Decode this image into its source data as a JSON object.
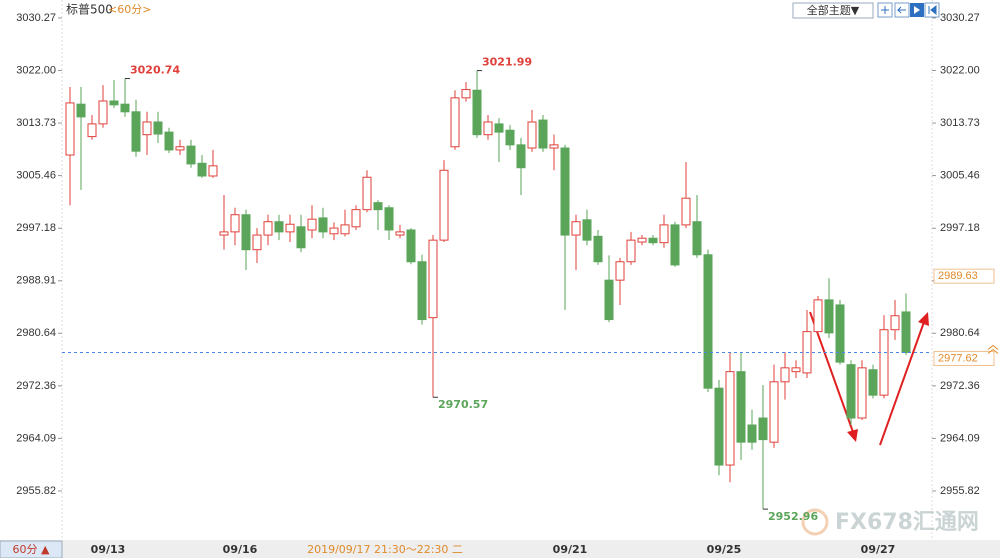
{
  "chart_data": {
    "type": "candlestick",
    "title": "标普500",
    "subtitle": "<60分>",
    "theme_button": "全部主题▼",
    "period_button": "60分 ▲",
    "watermark": "FX678汇通网",
    "crosshair_label": "2019/09/17 21:30～22:30 二",
    "crosshair_price": 2989.63,
    "categories": [
      null,
      null,
      null,
      "09/13",
      null,
      null,
      null,
      null,
      null,
      null,
      null,
      null,
      null,
      null,
      null,
      "09/16",
      null,
      null,
      null,
      null,
      null,
      null,
      null,
      null,
      null,
      null,
      null,
      null,
      null,
      null,
      null,
      null,
      null,
      null,
      null,
      null,
      null,
      null,
      null,
      null,
      null,
      null,
      null,
      null,
      null,
      "09/21",
      null,
      null,
      null,
      null,
      null,
      null,
      null,
      null,
      null,
      null,
      null,
      null,
      null,
      "09/25",
      null,
      null,
      null,
      null,
      null,
      null,
      null,
      null,
      null,
      null,
      null,
      null,
      null,
      "09/27",
      null,
      null,
      null
    ],
    "open": [
      3008.7,
      3016.7,
      3011.6,
      3013.6,
      3017.2,
      3016.7,
      3015.5,
      3011.9,
      3013.9,
      3012.3,
      3009.5,
      3010.1,
      3007.4,
      3005.4,
      2996.1,
      2996.6,
      2999.3,
      2993.8,
      2996.1,
      2998.2,
      2996.6,
      2997.4,
      2996.9,
      2998.8,
      2996.3,
      2996.3,
      2997.4,
      3000.1,
      3001.2,
      3000.4,
      2996.1,
      2996.9,
      2991.9,
      2983.1,
      2995.3,
      3010.0,
      3017.7,
      3018.9,
      3011.9,
      3013.6,
      3012.6,
      3010.3,
      3009.8,
      3014.2,
      3009.8,
      3009.8,
      2996.1,
      2998.5,
      2995.9,
      2989.0,
      2989.0,
      2991.9,
      2995.0,
      2995.6,
      2994.9,
      2997.7,
      2997.7,
      2998.2,
      2993.0,
      2972.0,
      2959.9,
      2974.6,
      2966.2,
      2967.3,
      2963.5,
      2973.0,
      2974.6,
      2974.4,
      2980.9,
      2985.9,
      2985.1,
      2975.7,
      2967.3,
      2974.9,
      2970.9,
      2981.2,
      2984.0
    ],
    "high": [
      3019.4,
      3019.4,
      3015.0,
      3019.7,
      3020.5,
      3020.74,
      3017.4,
      3015.5,
      3015.5,
      3013.0,
      3011.1,
      3011.1,
      3008.7,
      3009.5,
      3002.4,
      3000.4,
      3000.1,
      2997.2,
      2999.3,
      2999.3,
      2999.3,
      2999.3,
      3000.8,
      3000.4,
      2998.1,
      3000.1,
      3000.8,
      3006.3,
      3001.6,
      3000.8,
      2997.7,
      2997.2,
      2993.0,
      2996.1,
      3007.9,
      3018.9,
      3020.2,
      3021.99,
      3015.0,
      3014.5,
      3013.4,
      3011.4,
      3015.8,
      3015.0,
      3011.9,
      3010.3,
      2999.3,
      3000.1,
      2996.9,
      2992.9,
      2992.5,
      2996.6,
      2996.1,
      2996.1,
      2999.3,
      2998.2,
      3007.6,
      3002.4,
      2993.8,
      2973.3,
      2977.7,
      2977.7,
      2968.6,
      2972.5,
      2975.7,
      2977.7,
      2976.4,
      2984.3,
      2986.5,
      2989.3,
      2985.9,
      2976.4,
      2976.4,
      2975.7,
      2983.5,
      2985.9,
      2986.9
    ],
    "low": [
      3000.8,
      3003.2,
      3011.1,
      3013.0,
      3016.1,
      3014.7,
      3008.4,
      3008.7,
      3010.6,
      3009.0,
      3008.7,
      3006.7,
      3005.1,
      3005.1,
      2993.8,
      2994.5,
      2990.6,
      2991.7,
      2994.5,
      2995.3,
      2995.0,
      2993.4,
      2995.6,
      2995.6,
      2995.3,
      2995.9,
      2996.9,
      2999.7,
      2996.9,
      2995.3,
      2995.6,
      2991.5,
      2982.0,
      2970.57,
      2995.0,
      3009.5,
      3017.1,
      3011.4,
      3011.1,
      3007.6,
      3009.5,
      3002.4,
      3009.2,
      3009.2,
      3006.3,
      2984.3,
      2990.6,
      2994.5,
      2991.4,
      2982.4,
      2985.1,
      2991.4,
      2994.5,
      2994.5,
      2994.1,
      2991.1,
      2997.2,
      2992.5,
      2971.4,
      2958.3,
      2957.2,
      2960.7,
      2962.3,
      2952.96,
      2962.6,
      2970.2,
      2973.6,
      2973.6,
      2980.4,
      2979.9,
      2975.7,
      2966.2,
      2967.0,
      2970.4,
      2970.4,
      2979.6,
      2977.2
    ],
    "close": [
      3016.9,
      3014.7,
      3013.6,
      3017.2,
      3016.6,
      3015.5,
      3009.3,
      3013.9,
      3012.0,
      3009.5,
      3010.0,
      3007.3,
      3005.4,
      3007.0,
      2996.6,
      2999.3,
      2993.8,
      2996.1,
      2998.2,
      2996.6,
      2997.8,
      2994.1,
      2998.6,
      2996.6,
      2997.2,
      2997.7,
      3000.1,
      3005.2,
      3000.1,
      2996.9,
      2996.6,
      2991.9,
      2982.8,
      2995.3,
      3006.3,
      3017.7,
      3019.0,
      3011.9,
      3013.9,
      3012.3,
      3010.3,
      3006.7,
      3013.9,
      3009.8,
      3010.3,
      2996.1,
      2998.2,
      2995.3,
      2991.9,
      2982.8,
      2991.9,
      2995.3,
      2995.6,
      2994.9,
      2997.7,
      2991.4,
      3001.9,
      2993.0,
      2972.0,
      2959.9,
      2974.6,
      2963.5,
      2963.5,
      2963.9,
      2973.0,
      2975.2,
      2975.2,
      2980.9,
      2985.9,
      2980.7,
      2976.1,
      2967.3,
      2975.2,
      2970.9,
      2981.2,
      2983.4,
      2977.62
    ],
    "up_color": "#e0403a",
    "down_color": "#5aa55a",
    "ylim": [
      2948.1,
      3033.1
    ],
    "yticks": [
      3030.27,
      {
        "value": 3022,
        "label": "3022.00"
      },
      3013.73,
      3005.46,
      2997.18,
      2988.91,
      2980.64,
      2972.36,
      2964.09,
      2955.82
    ]
  }
}
